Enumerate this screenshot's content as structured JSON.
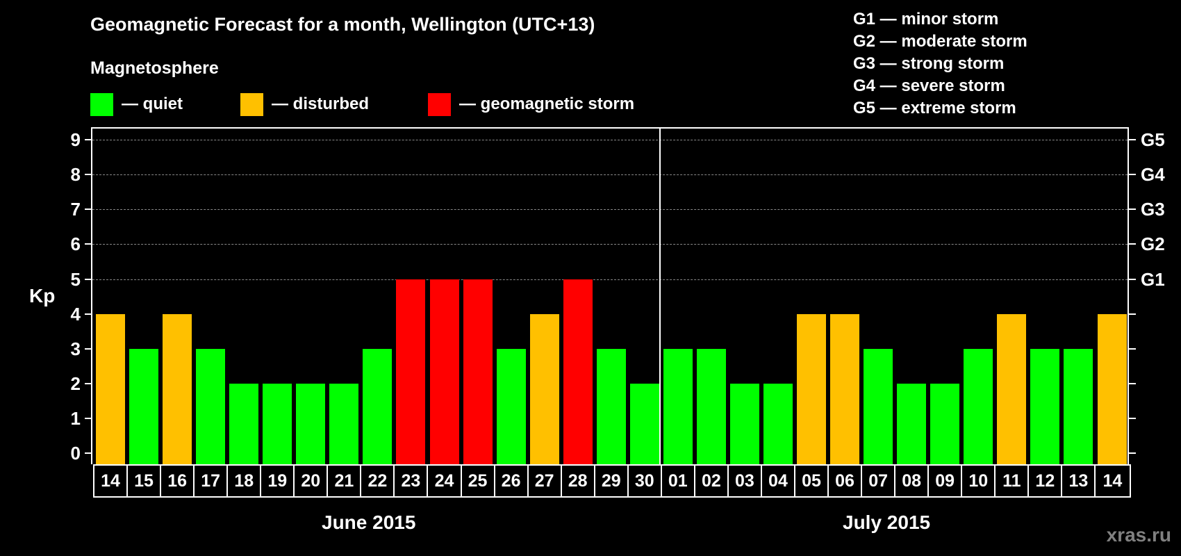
{
  "title": "Geomagnetic Forecast for a month, Wellington (UTC+13)",
  "subtitle": "Magnetosphere",
  "legend": [
    {
      "label": "— quiet",
      "color": "#00ff00"
    },
    {
      "label": "— disturbed",
      "color": "#ffc000"
    },
    {
      "label": "— geomagnetic storm",
      "color": "#ff0000"
    }
  ],
  "g_scale_legend": [
    "G1 — minor storm",
    "G2 — moderate storm",
    "G3 — strong storm",
    "G4 — severe storm",
    "G5 — extreme storm"
  ],
  "y_axis_label": "Kp",
  "y_ticks": [
    "0",
    "1",
    "2",
    "3",
    "4",
    "5",
    "6",
    "7",
    "8",
    "9"
  ],
  "g_ticks": [
    {
      "kp": 5,
      "label": "G1"
    },
    {
      "kp": 6,
      "label": "G2"
    },
    {
      "kp": 7,
      "label": "G3"
    },
    {
      "kp": 8,
      "label": "G4"
    },
    {
      "kp": 9,
      "label": "G5"
    }
  ],
  "months": [
    "June 2015",
    "July 2015"
  ],
  "watermark": "xras.ru",
  "colors": {
    "quiet": "#00ff00",
    "disturbed": "#ffc000",
    "storm": "#ff0000",
    "background": "#000000",
    "grid": "#888888"
  },
  "chart_data": {
    "type": "bar",
    "title": "Geomagnetic Forecast for a month, Wellington (UTC+13)",
    "xlabel": "June 2015 / July 2015",
    "ylabel": "Kp",
    "ylim": [
      0,
      9
    ],
    "grid": "dashed horizontal at Kp 5-9",
    "categories": [
      "14",
      "15",
      "16",
      "17",
      "18",
      "19",
      "20",
      "21",
      "22",
      "23",
      "24",
      "25",
      "26",
      "27",
      "28",
      "29",
      "30",
      "01",
      "02",
      "03",
      "04",
      "05",
      "06",
      "07",
      "08",
      "09",
      "10",
      "11",
      "12",
      "13",
      "14"
    ],
    "values": [
      4,
      3,
      4,
      3,
      2,
      2,
      2,
      2,
      3,
      5,
      5,
      5,
      3,
      4,
      5,
      3,
      2,
      3,
      3,
      2,
      2,
      4,
      4,
      3,
      2,
      2,
      3,
      4,
      3,
      3,
      4
    ],
    "status": [
      "disturbed",
      "quiet",
      "disturbed",
      "quiet",
      "quiet",
      "quiet",
      "quiet",
      "quiet",
      "quiet",
      "storm",
      "storm",
      "storm",
      "quiet",
      "disturbed",
      "storm",
      "quiet",
      "quiet",
      "quiet",
      "quiet",
      "quiet",
      "quiet",
      "disturbed",
      "disturbed",
      "quiet",
      "quiet",
      "quiet",
      "quiet",
      "disturbed",
      "quiet",
      "quiet",
      "disturbed"
    ],
    "legend": [
      "quiet",
      "disturbed",
      "geomagnetic storm"
    ],
    "secondary_axis": {
      "G1": 5,
      "G2": 6,
      "G3": 7,
      "G4": 8,
      "G5": 9
    }
  }
}
